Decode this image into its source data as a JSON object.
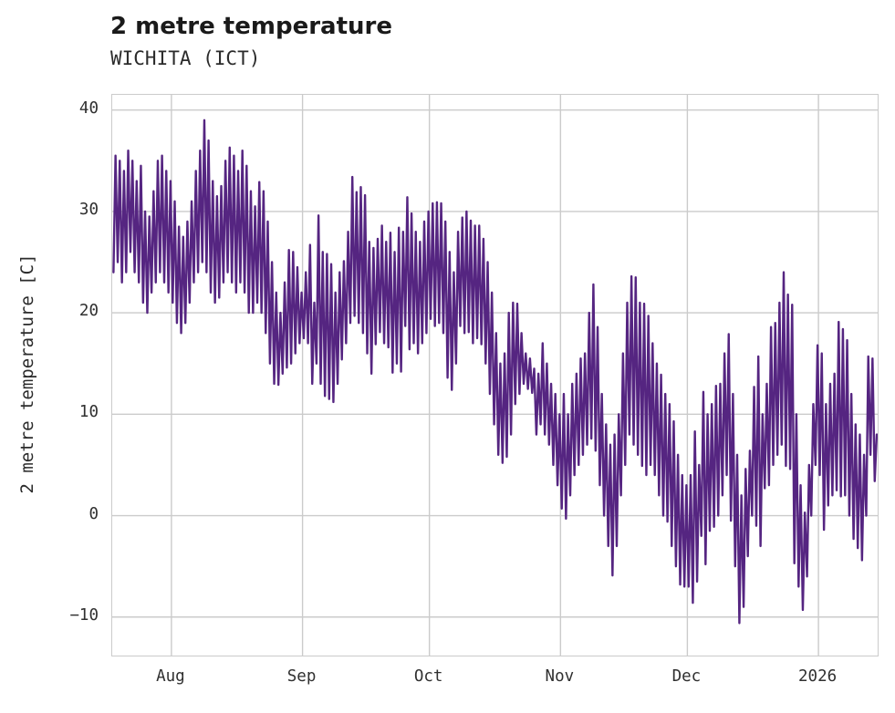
{
  "chart_data": {
    "type": "line",
    "title": "2 metre temperature",
    "subtitle": "WICHITA (ICT)",
    "ylabel": "2 metre temperature [C]",
    "line_color": "#552581",
    "grid_color": "#cbcbcb",
    "text_color": "#303030",
    "title_color": "#1a1a1a",
    "grid": true,
    "legend": "none",
    "xlim_days": [
      0,
      181
    ],
    "ylim": [
      -13.8,
      41.5
    ],
    "x_ticks": [
      {
        "label": "Aug",
        "day": 14
      },
      {
        "label": "Sep",
        "day": 45
      },
      {
        "label": "Oct",
        "day": 75
      },
      {
        "label": "Nov",
        "day": 106
      },
      {
        "label": "Dec",
        "day": 136
      },
      {
        "label": "2026",
        "day": 167
      }
    ],
    "y_ticks": [
      {
        "label": "40",
        "value": 40
      },
      {
        "label": "30",
        "value": 30
      },
      {
        "label": "20",
        "value": 20
      },
      {
        "label": "10",
        "value": 10
      },
      {
        "label": "0",
        "value": 0
      },
      {
        "label": "−10",
        "value": -10
      }
    ],
    "series": [
      {
        "name": "2 metre temperature [C]",
        "sampling": "daily minimum and maximum pairs, day 0 at left edge (mid-July), month gridline day offsets given in x_ticks",
        "daily_min_max": [
          [
            24,
            35.5
          ],
          [
            25,
            35
          ],
          [
            23,
            34
          ],
          [
            24,
            36
          ],
          [
            26,
            35
          ],
          [
            24,
            33
          ],
          [
            23,
            34.5
          ],
          [
            21,
            30
          ],
          [
            20,
            29.5
          ],
          [
            22,
            32
          ],
          [
            23,
            35
          ],
          [
            24,
            35.5
          ],
          [
            23,
            34
          ],
          [
            22,
            33
          ],
          [
            21,
            31
          ],
          [
            19,
            28.5
          ],
          [
            18,
            27.5
          ],
          [
            19,
            29
          ],
          [
            21,
            31
          ],
          [
            23,
            34
          ],
          [
            24,
            36
          ],
          [
            25,
            39
          ],
          [
            24,
            37
          ],
          [
            22,
            33
          ],
          [
            21,
            31.5
          ],
          [
            21.5,
            32.5
          ],
          [
            23,
            35
          ],
          [
            24,
            36.3
          ],
          [
            23,
            35.5
          ],
          [
            22,
            34
          ],
          [
            23,
            36
          ],
          [
            22,
            34.5
          ],
          [
            20,
            32
          ],
          [
            20,
            30.5
          ],
          [
            21,
            32.9
          ],
          [
            20,
            32
          ],
          [
            18,
            29
          ],
          [
            15,
            25
          ],
          [
            13,
            22
          ],
          [
            12.9,
            20
          ],
          [
            14,
            23
          ],
          [
            14.6,
            26.2
          ],
          [
            15,
            26
          ],
          [
            16,
            24.5
          ],
          [
            17,
            22
          ],
          [
            17.5,
            24
          ],
          [
            17,
            26.7
          ],
          [
            13,
            21
          ],
          [
            15,
            29.6
          ],
          [
            13,
            26
          ],
          [
            11.8,
            25.8
          ],
          [
            11.5,
            24.8
          ],
          [
            11.2,
            22
          ],
          [
            13,
            24
          ],
          [
            15.4,
            25.1
          ],
          [
            17,
            28
          ],
          [
            19,
            33.4
          ],
          [
            19.7,
            31.9
          ],
          [
            19,
            32.4
          ],
          [
            18,
            31.6
          ],
          [
            16,
            27
          ],
          [
            14,
            26.4
          ],
          [
            16.9,
            27.3
          ],
          [
            18.1,
            28.6
          ],
          [
            17,
            27
          ],
          [
            16.6,
            27.9
          ],
          [
            14.1,
            26
          ],
          [
            15,
            28.4
          ],
          [
            14.2,
            28
          ],
          [
            18.7,
            31.4
          ],
          [
            16.4,
            29.8
          ],
          [
            17,
            28
          ],
          [
            16,
            27
          ],
          [
            17,
            29
          ],
          [
            18,
            30
          ],
          [
            19.4,
            30.8
          ],
          [
            18.7,
            30.9
          ],
          [
            19,
            30.8
          ],
          [
            18,
            29
          ],
          [
            13.6,
            26
          ],
          [
            12.4,
            24
          ],
          [
            15,
            28
          ],
          [
            18.7,
            29.4
          ],
          [
            18,
            30
          ],
          [
            18.1,
            29.1
          ],
          [
            17,
            28.6
          ],
          [
            17.5,
            28.6
          ],
          [
            16.9,
            27.3
          ],
          [
            15,
            25
          ],
          [
            12,
            22
          ],
          [
            9,
            18
          ],
          [
            6,
            15
          ],
          [
            5.2,
            16
          ],
          [
            5.8,
            20
          ],
          [
            8,
            21
          ],
          [
            11,
            20.9
          ],
          [
            12,
            18
          ],
          [
            13,
            16
          ],
          [
            12.5,
            15.5
          ],
          [
            12.1,
            14.5
          ],
          [
            8,
            14
          ],
          [
            9,
            17
          ],
          [
            8,
            15
          ],
          [
            7,
            13
          ],
          [
            5,
            12
          ],
          [
            3,
            10
          ],
          [
            0.7,
            12
          ],
          [
            -0.3,
            10
          ],
          [
            2,
            13
          ],
          [
            4,
            14
          ],
          [
            5,
            15.5
          ],
          [
            6,
            16
          ],
          [
            7,
            20
          ],
          [
            7.6,
            22.8
          ],
          [
            6.4,
            18.6
          ],
          [
            3,
            12
          ],
          [
            0,
            9
          ],
          [
            -3,
            7
          ],
          [
            -5.9,
            8
          ],
          [
            -3,
            10
          ],
          [
            2,
            16
          ],
          [
            5,
            21
          ],
          [
            8,
            23.6
          ],
          [
            7,
            23.5
          ],
          [
            6,
            21
          ],
          [
            4.9,
            20.9
          ],
          [
            4,
            19.7
          ],
          [
            5,
            17
          ],
          [
            4,
            15
          ],
          [
            2,
            13.9
          ],
          [
            0,
            12
          ],
          [
            -0.6,
            11
          ],
          [
            -3,
            9.3
          ],
          [
            -5,
            6
          ],
          [
            -6.8,
            4
          ],
          [
            -7,
            3
          ],
          [
            -7,
            4
          ],
          [
            -8.6,
            8.3
          ],
          [
            -6.5,
            5
          ],
          [
            -2,
            12.2
          ],
          [
            -4.8,
            10
          ],
          [
            -1.5,
            11
          ],
          [
            -1.1,
            12.8
          ],
          [
            0,
            13
          ],
          [
            2,
            16
          ],
          [
            4,
            17.9
          ],
          [
            -0.5,
            12
          ],
          [
            -5,
            6
          ],
          [
            -10.6,
            2
          ],
          [
            -9,
            4.6
          ],
          [
            -4,
            6.4
          ],
          [
            0,
            12.7
          ],
          [
            -1,
            15.7
          ],
          [
            -3,
            10
          ],
          [
            2.7,
            13
          ],
          [
            3,
            18.6
          ],
          [
            5,
            19
          ],
          [
            6,
            21
          ],
          [
            7,
            24
          ],
          [
            4.9,
            21.8
          ],
          [
            4.6,
            20.8
          ],
          [
            -4.7,
            10
          ],
          [
            -7,
            3
          ],
          [
            -9.3,
            0.3
          ],
          [
            -6,
            5
          ],
          [
            0,
            11
          ],
          [
            5,
            16.8
          ],
          [
            4,
            16
          ],
          [
            -1.4,
            11
          ],
          [
            1,
            13
          ],
          [
            2,
            14
          ],
          [
            2.5,
            19.1
          ],
          [
            1.9,
            18.4
          ],
          [
            2,
            17.3
          ],
          [
            0,
            12
          ],
          [
            -2.3,
            9
          ],
          [
            -3.2,
            8
          ],
          [
            -4.4,
            6
          ],
          [
            0,
            15.7
          ],
          [
            6,
            15.5
          ],
          [
            3.4,
            8
          ]
        ]
      }
    ]
  }
}
